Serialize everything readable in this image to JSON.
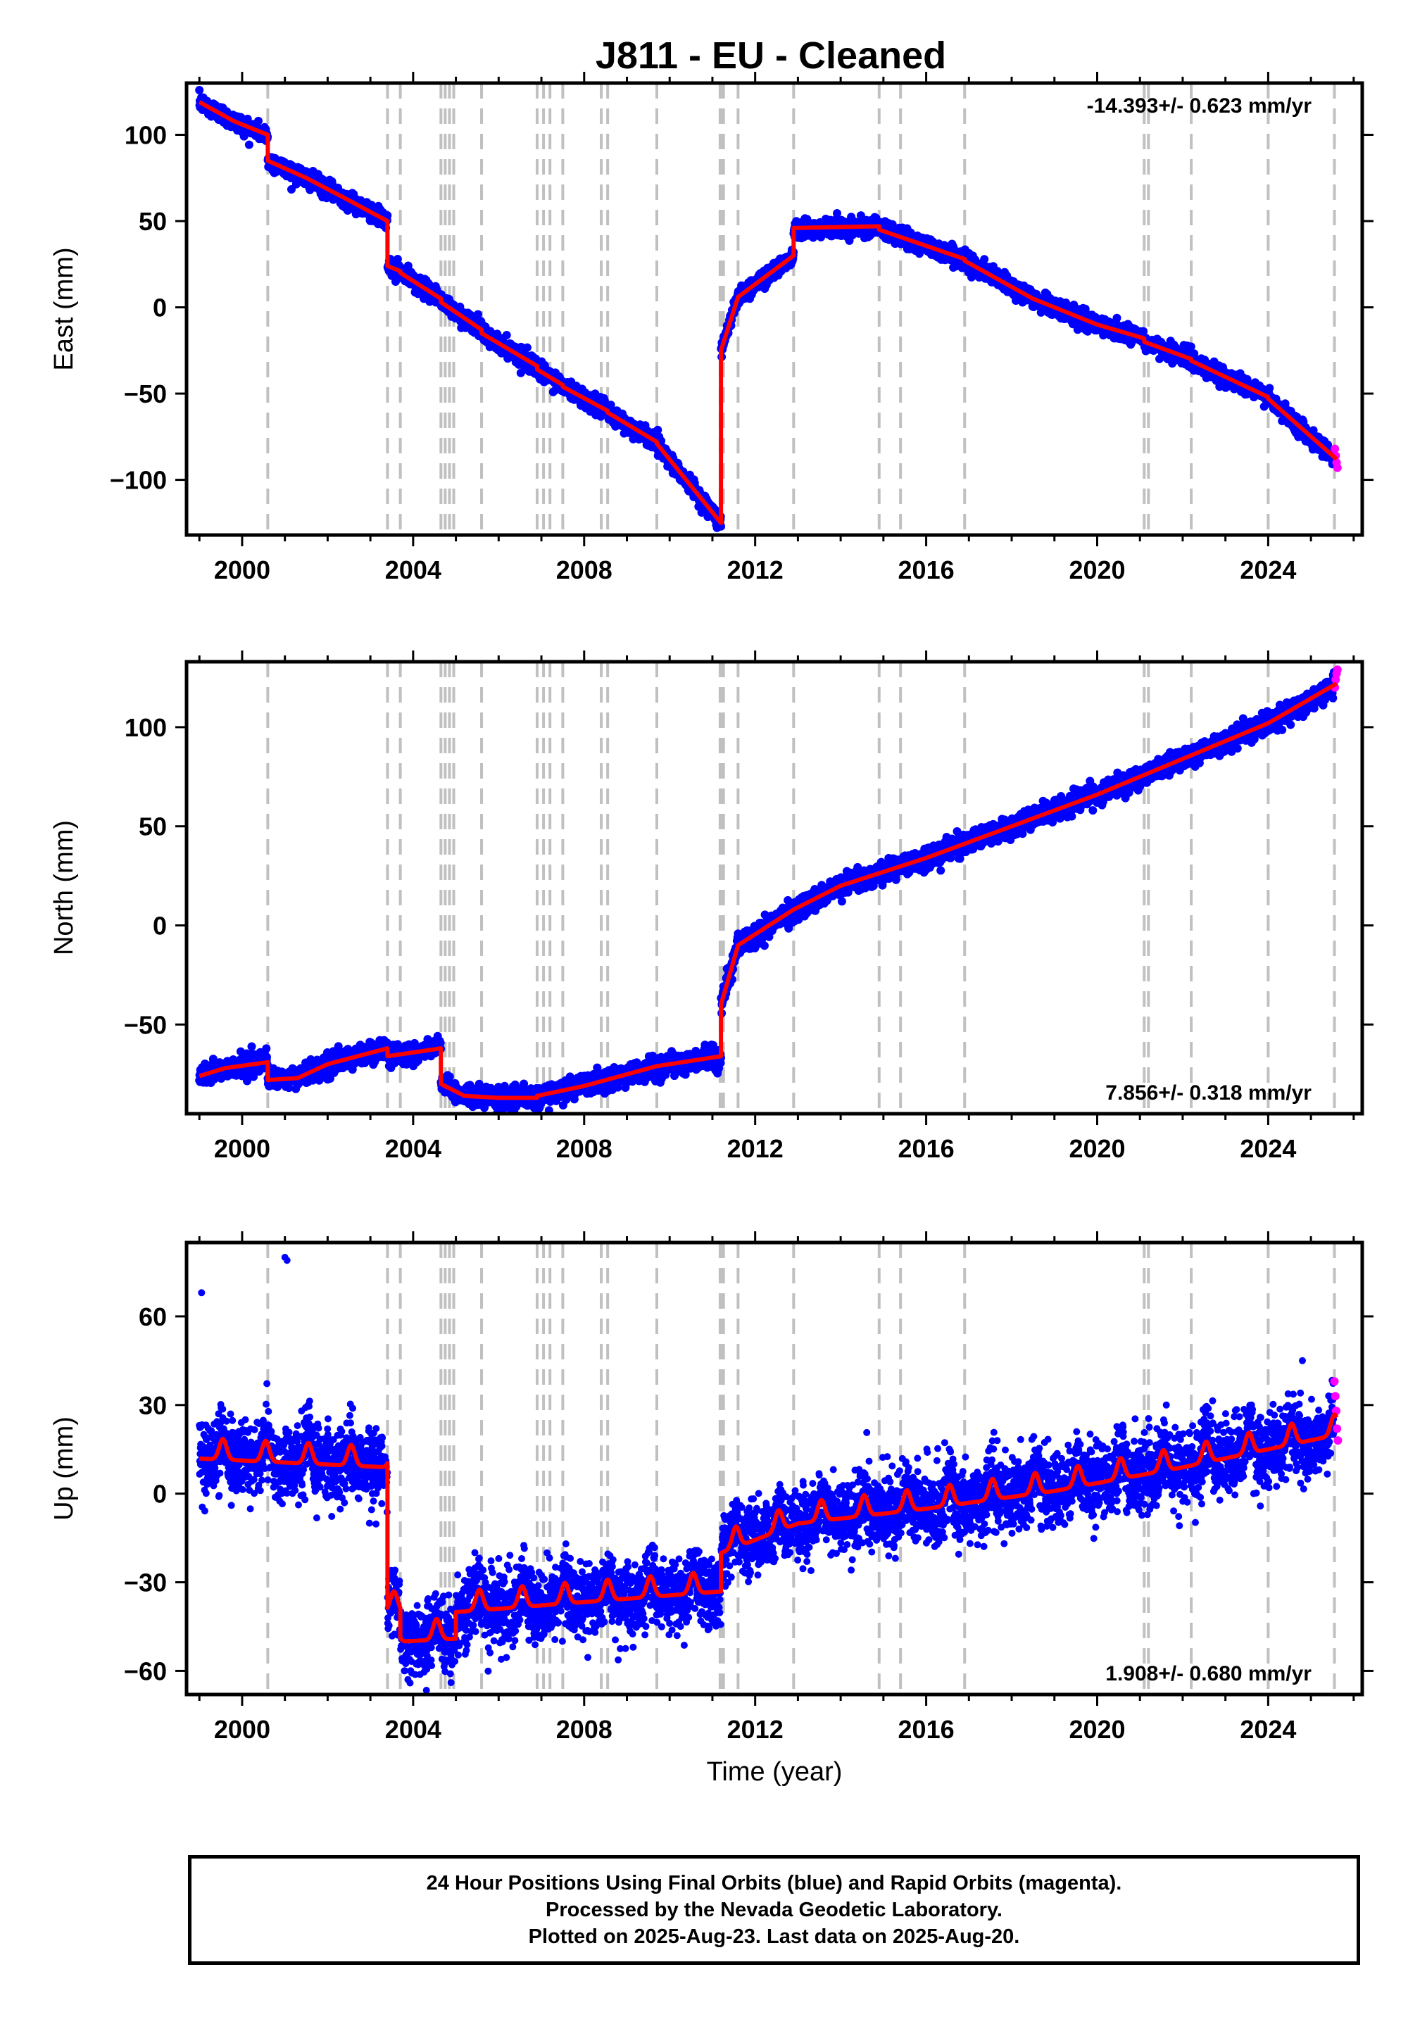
{
  "title": "J811  - EU - Cleaned",
  "colors": {
    "final": "#0000ff",
    "rapid": "#ff00ff",
    "model": "#ff0000",
    "event_lines": "#c0c0c0",
    "frame": "#000000"
  },
  "caption": {
    "line1": "24 Hour Positions Using Final Orbits (blue) and Rapid Orbits (magenta).",
    "line2": "Processed by the Nevada Geodetic Laboratory.",
    "line3": "Plotted on 2025-Aug-23. Last data on 2025-Aug-20."
  },
  "chart_data": [
    {
      "type": "scatter",
      "component": "east",
      "ylabel": "East (mm)",
      "xlabel": "",
      "xlim": [
        1998.7,
        2026.2
      ],
      "ylim": [
        -132,
        130
      ],
      "xticks": [
        2000,
        2004,
        2008,
        2012,
        2016,
        2020,
        2024
      ],
      "yticks": [
        -100,
        -50,
        0,
        50,
        100
      ],
      "velocity_label": "-14.393+/- 0.623 mm/yr",
      "velocity_position": "top-right",
      "event_lines": [
        2000.6,
        2003.4,
        2003.7,
        2004.65,
        2004.75,
        2004.85,
        2004.95,
        2005.6,
        2006.9,
        2007.05,
        2007.2,
        2007.5,
        2008.4,
        2008.55,
        2009.7,
        2011.18,
        2011.22,
        2011.26,
        2011.6,
        2012.9,
        2014.9,
        2015.4,
        2016.9,
        2021.1,
        2021.2,
        2022.2,
        2024.0,
        2025.55
      ],
      "model_segments": [
        [
          [
            1999.0,
            119
          ],
          [
            1999.8,
            108
          ],
          [
            2000.6,
            100
          ]
        ],
        [
          [
            2000.6,
            85
          ],
          [
            2001.5,
            75
          ],
          [
            2002.5,
            62
          ],
          [
            2003.4,
            50
          ]
        ],
        [
          [
            2003.4,
            24
          ],
          [
            2003.7,
            21
          ]
        ],
        [
          [
            2003.7,
            20
          ],
          [
            2004.65,
            5
          ]
        ],
        [
          [
            2004.65,
            3
          ],
          [
            2005.6,
            -13
          ]
        ],
        [
          [
            2005.6,
            -15
          ],
          [
            2006.9,
            -34
          ]
        ],
        [
          [
            2006.9,
            -36
          ],
          [
            2007.5,
            -45
          ]
        ],
        [
          [
            2007.5,
            -46
          ],
          [
            2008.55,
            -60
          ]
        ],
        [
          [
            2008.55,
            -61
          ],
          [
            2009.7,
            -78
          ]
        ],
        [
          [
            2009.7,
            -79
          ],
          [
            2011.2,
            -125
          ]
        ],
        [
          [
            2011.2,
            -25
          ],
          [
            2011.6,
            6
          ],
          [
            2012.9,
            30
          ]
        ],
        [
          [
            2012.9,
            46
          ],
          [
            2014.9,
            47
          ]
        ],
        [
          [
            2014.9,
            45
          ],
          [
            2016.9,
            28
          ]
        ],
        [
          [
            2016.9,
            27
          ],
          [
            2018.5,
            5
          ],
          [
            2020.0,
            -10
          ],
          [
            2021.1,
            -18
          ]
        ],
        [
          [
            2021.1,
            -20
          ],
          [
            2022.2,
            -30
          ]
        ],
        [
          [
            2022.2,
            -31
          ],
          [
            2024.0,
            -52
          ]
        ],
        [
          [
            2024.0,
            -53
          ],
          [
            2025.6,
            -88
          ]
        ]
      ],
      "scatter_noise_mm": 2.5,
      "rapid_points": [
        [
          2025.56,
          -82
        ],
        [
          2025.58,
          -86
        ],
        [
          2025.6,
          -90
        ],
        [
          2025.62,
          -93
        ]
      ]
    },
    {
      "type": "scatter",
      "component": "north",
      "ylabel": "North (mm)",
      "xlabel": "",
      "xlim": [
        1998.7,
        2026.2
      ],
      "ylim": [
        -95,
        133
      ],
      "xticks": [
        2000,
        2004,
        2008,
        2012,
        2016,
        2020,
        2024
      ],
      "yticks": [
        -50,
        0,
        50,
        100
      ],
      "velocity_label": "7.856+/- 0.318 mm/yr",
      "velocity_position": "bottom-right",
      "event_lines": [
        2000.6,
        2003.4,
        2003.7,
        2004.65,
        2004.75,
        2004.85,
        2004.95,
        2005.6,
        2006.9,
        2007.05,
        2007.2,
        2007.5,
        2008.4,
        2008.55,
        2009.7,
        2011.18,
        2011.22,
        2011.26,
        2011.6,
        2012.9,
        2014.9,
        2015.4,
        2016.9,
        2021.1,
        2021.2,
        2022.2,
        2024.0,
        2025.55
      ],
      "model_segments": [
        [
          [
            1999.0,
            -76
          ],
          [
            1999.6,
            -72
          ],
          [
            2000.6,
            -69
          ]
        ],
        [
          [
            2000.6,
            -78
          ],
          [
            2001.3,
            -77
          ],
          [
            2002.0,
            -70
          ],
          [
            2003.4,
            -62
          ]
        ],
        [
          [
            2003.4,
            -66
          ],
          [
            2004.65,
            -62
          ]
        ],
        [
          [
            2004.65,
            -80
          ],
          [
            2005.2,
            -86
          ],
          [
            2006.0,
            -87
          ],
          [
            2006.9,
            -87
          ]
        ],
        [
          [
            2006.9,
            -86
          ],
          [
            2008.0,
            -81
          ],
          [
            2009.7,
            -71
          ],
          [
            2011.2,
            -66
          ]
        ],
        [
          [
            2011.2,
            -40
          ],
          [
            2011.6,
            -10
          ],
          [
            2012.9,
            8
          ],
          [
            2014.0,
            20
          ],
          [
            2016.0,
            34
          ],
          [
            2018.0,
            50
          ],
          [
            2020.0,
            66
          ],
          [
            2022.0,
            84
          ],
          [
            2024.0,
            102
          ],
          [
            2025.6,
            122
          ]
        ]
      ],
      "scatter_noise_mm": 2.5,
      "rapid_points": [
        [
          2025.56,
          120
        ],
        [
          2025.58,
          124
        ],
        [
          2025.6,
          127
        ],
        [
          2025.62,
          129
        ]
      ]
    },
    {
      "type": "scatter",
      "component": "up",
      "ylabel": "Up (mm)",
      "xlabel": "Time (year)",
      "xlim": [
        1998.7,
        2026.2
      ],
      "ylim": [
        -68,
        85
      ],
      "xticks": [
        2000,
        2004,
        2008,
        2012,
        2016,
        2020,
        2024
      ],
      "yticks": [
        -60,
        -30,
        0,
        30,
        60
      ],
      "velocity_label": "1.908+/- 0.680 mm/yr",
      "velocity_position": "bottom-right",
      "event_lines": [
        2000.6,
        2003.4,
        2003.7,
        2004.65,
        2004.75,
        2004.85,
        2004.95,
        2005.6,
        2006.9,
        2007.05,
        2007.2,
        2007.5,
        2008.4,
        2008.55,
        2009.7,
        2011.18,
        2011.22,
        2011.26,
        2011.6,
        2012.9,
        2014.9,
        2015.4,
        2016.9,
        2021.1,
        2021.2,
        2022.2,
        2024.0,
        2025.55
      ],
      "model_segments": [
        [
          [
            1999.0,
            14
          ],
          [
            2003.4,
            11
          ]
        ],
        [
          [
            2003.4,
            -38
          ],
          [
            2003.7,
            -38
          ]
        ],
        [
          [
            2003.7,
            -48
          ],
          [
            2005.0,
            -47
          ]
        ],
        [
          [
            2005.0,
            -38
          ],
          [
            2011.2,
            -31
          ]
        ],
        [
          [
            2011.2,
            -18
          ],
          [
            2013.0,
            -8
          ],
          [
            2016.0,
            -3
          ],
          [
            2019.0,
            3
          ],
          [
            2022.0,
            11
          ],
          [
            2025.6,
            22
          ]
        ]
      ],
      "seasonal_amplitude_mm": 3.5,
      "scatter_noise_mm": 6,
      "outlier_points": [
        [
          1999.05,
          68
        ],
        [
          2001.05,
          79
        ],
        [
          2001.0,
          80
        ],
        [
          2024.8,
          45
        ]
      ],
      "rapid_points": [
        [
          2025.55,
          38
        ],
        [
          2025.57,
          33
        ],
        [
          2025.59,
          28
        ],
        [
          2025.61,
          22
        ],
        [
          2025.63,
          18
        ]
      ]
    }
  ]
}
